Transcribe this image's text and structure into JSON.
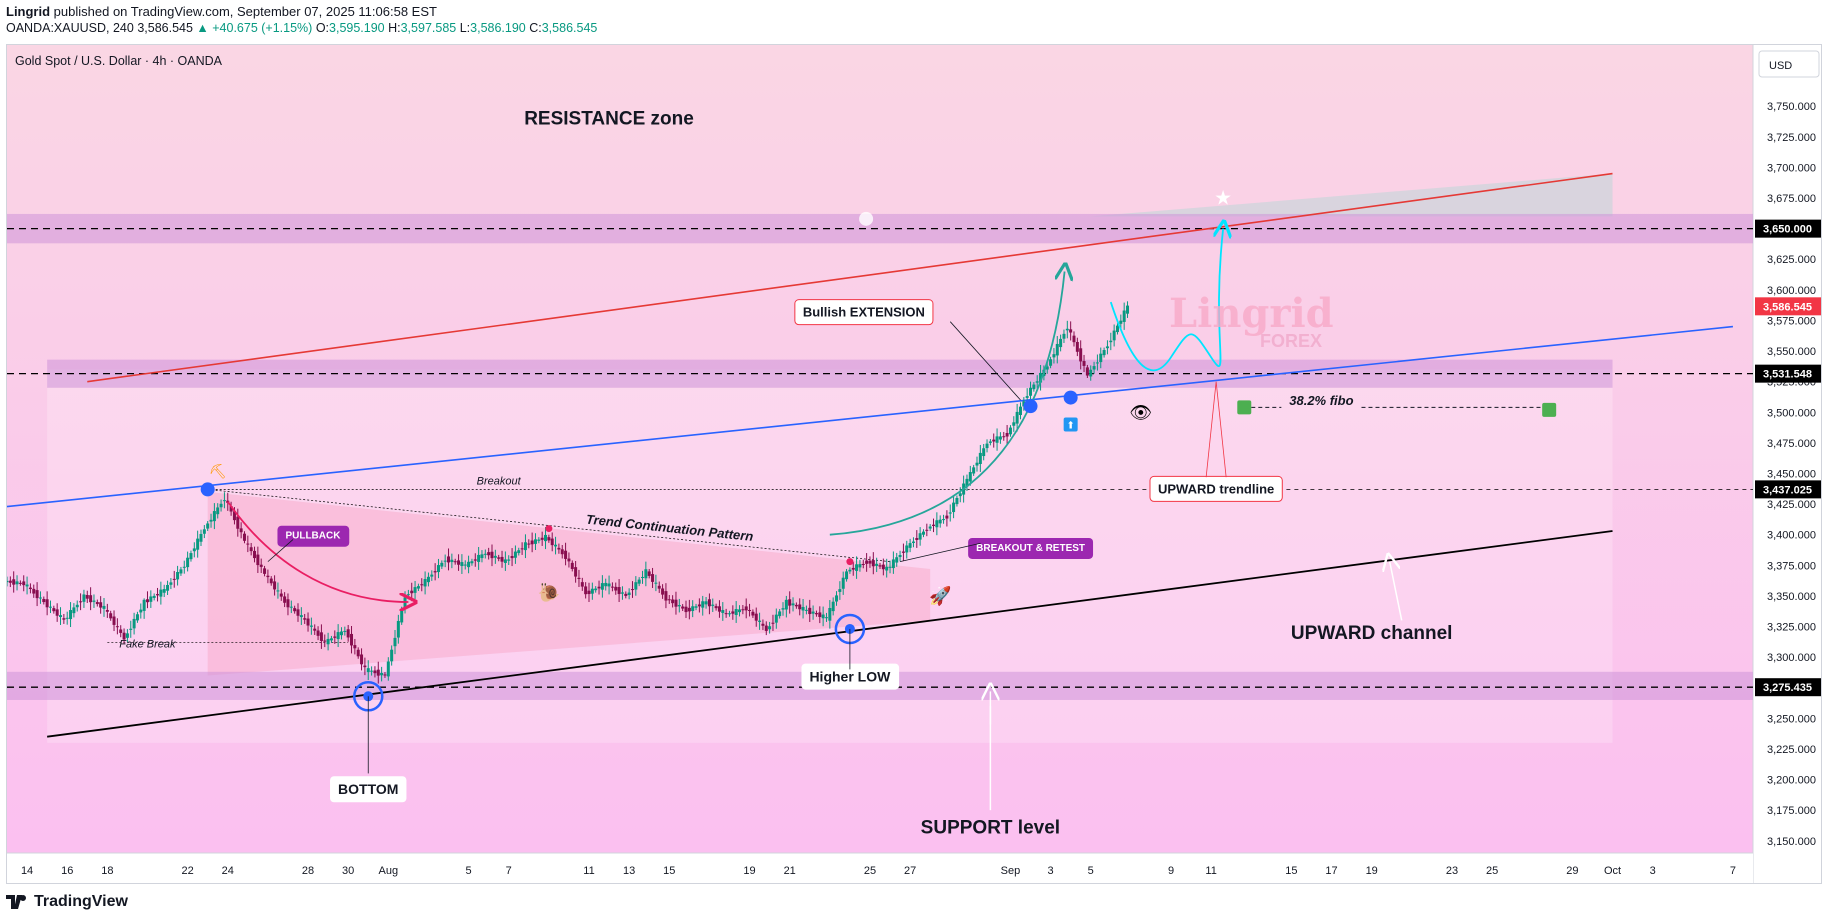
{
  "header": {
    "publisher": "Lingrid",
    "published_text": "published on TradingView.com, September 07, 2025 11:06:58 EST",
    "symbol": "OANDA:XAUUSD, 240",
    "last": "3,586.545",
    "change": "▲ +40.675 (+1.15%)",
    "o_label": "O:",
    "o": "3,595.190",
    "h_label": "H:",
    "h": "3,597.585",
    "l_label": "L:",
    "l": "3,586.190",
    "c_label": "C:",
    "c": "3,586.545"
  },
  "chart_title": "Gold Spot / U.S. Dollar · 4h · OANDA",
  "currency_button": "USD",
  "footer_brand": "TradingView",
  "watermark": {
    "line1": "Lingrid",
    "line2": "FOREX"
  },
  "colors": {
    "bg_top": "#fad6e6",
    "bg_bottom": "#fbc2f2",
    "up_candle": "#089981",
    "down_candle": "#880e4f",
    "resistance_line": "#e53935",
    "trend_line": "#2962ff",
    "channel_line": "#000000",
    "projection": "#00e5ff",
    "arc_green": "#26a69a",
    "arc_pink": "#e91e63",
    "label_purple": "#9c27b0",
    "price_label_bg": "#000000",
    "last_price_bg": "#f23645"
  },
  "annotations": {
    "resistance_zone": "RESISTANCE zone",
    "support_level": "SUPPORT level",
    "upward_channel": "UPWARD channel",
    "upward_trendline": "UPWARD trendline",
    "bullish_extension": "Bullish EXTENSION",
    "breakout_retest": "BREAKOUT & RETEST",
    "pullback": "PULLBACK",
    "breakout": "Breakout",
    "fake_break": "Fake Break",
    "trend_continuation": "Trend Continuation Pattern",
    "fibo": "38.2% fibo",
    "higher_low": "Higher LOW",
    "bottom": "BOTTOM"
  },
  "chart_data": {
    "type": "candlestick",
    "title": "Gold Spot / U.S. Dollar · 4h · OANDA",
    "currency": "USD",
    "ylim": [
      3140,
      3800
    ],
    "y_ticks": [
      3150,
      3175,
      3200,
      3225,
      3250,
      3275,
      3300,
      3325,
      3350,
      3375,
      3400,
      3425,
      3450,
      3475,
      3500,
      3525,
      3550,
      3575,
      3600,
      3625,
      3650,
      3675,
      3700,
      3725,
      3750
    ],
    "y_tick_labels": [
      "3,150.000",
      "3,175.000",
      "3,200.000",
      "3,225.000",
      "3,250.000",
      "3,275.000",
      "3,300.000",
      "3,325.000",
      "3,350.000",
      "3,375.000",
      "3,400.000",
      "3,425.000",
      "3,450.000",
      "3,475.000",
      "3,500.000",
      "3,525.000",
      "3,550.000",
      "3,575.000",
      "3,600.000",
      "3,625.000",
      "3,650.000",
      "3,675.000",
      "3,700.000",
      "3,725.000",
      "3,750.000"
    ],
    "x_tick_labels": [
      "14",
      "16",
      "18",
      "22",
      "24",
      "28",
      "30",
      "Aug",
      "5",
      "7",
      "11",
      "13",
      "15",
      "19",
      "21",
      "25",
      "27",
      "Sep",
      "3",
      "5",
      "9",
      "11",
      "15",
      "17",
      "19",
      "23",
      "25",
      "29",
      "Oct",
      "3",
      "7"
    ],
    "x_tick_dates": [
      "2025-07-14",
      "2025-07-16",
      "2025-07-18",
      "2025-07-22",
      "2025-07-24",
      "2025-07-28",
      "2025-07-30",
      "2025-08-01",
      "2025-08-05",
      "2025-08-07",
      "2025-08-11",
      "2025-08-13",
      "2025-08-15",
      "2025-08-19",
      "2025-08-21",
      "2025-08-25",
      "2025-08-27",
      "2025-09-01",
      "2025-09-03",
      "2025-09-05",
      "2025-09-09",
      "2025-09-11",
      "2025-09-15",
      "2025-09-17",
      "2025-09-19",
      "2025-09-23",
      "2025-09-25",
      "2025-09-29",
      "2025-10-01",
      "2025-10-03",
      "2025-10-07"
    ],
    "price_labels": [
      {
        "value": 3650.0,
        "text": "3,650.000"
      },
      {
        "value": 3586.545,
        "text": "3,586.545"
      },
      {
        "value": 3531.548,
        "text": "3,531.548"
      },
      {
        "value": 3437.025,
        "text": "3,437.025"
      },
      {
        "value": 3275.435,
        "text": "3,275.435"
      }
    ],
    "levels": {
      "resistance_zone": [
        3638,
        3662
      ],
      "mid_zone": [
        3520,
        3543
      ],
      "support_zone": [
        3265,
        3288
      ]
    },
    "lines": {
      "resistance": [
        [
          "2025-07-17",
          3525
        ],
        [
          "2025-10-01",
          3695
        ]
      ],
      "trendline": [
        [
          "2025-07-13",
          3423
        ],
        [
          "2025-10-07",
          3570
        ]
      ],
      "channel": [
        [
          "2025-07-15",
          3235
        ],
        [
          "2025-10-01",
          3403
        ]
      ]
    },
    "series": [
      {
        "kind": "ohlc",
        "points": [
          [
            "2025-07-13",
            3362,
            3375,
            3352,
            3360
          ],
          [
            "2025-07-14",
            3360,
            3370,
            3340,
            3345
          ],
          [
            "2025-07-15",
            3345,
            3360,
            3325,
            3330
          ],
          [
            "2025-07-16",
            3330,
            3355,
            3322,
            3350
          ],
          [
            "2025-07-17",
            3350,
            3362,
            3332,
            3340
          ],
          [
            "2025-07-18",
            3340,
            3352,
            3310,
            3315
          ],
          [
            "2025-07-19",
            3315,
            3348,
            3310,
            3345
          ],
          [
            "2025-07-20",
            3345,
            3365,
            3340,
            3355
          ],
          [
            "2025-07-21",
            3355,
            3380,
            3350,
            3375
          ],
          [
            "2025-07-22",
            3375,
            3410,
            3370,
            3405
          ],
          [
            "2025-07-23",
            3405,
            3442,
            3395,
            3430
          ],
          [
            "2025-07-24",
            3430,
            3438,
            3385,
            3395
          ],
          [
            "2025-07-25",
            3395,
            3400,
            3358,
            3368
          ],
          [
            "2025-07-26",
            3368,
            3378,
            3340,
            3345
          ],
          [
            "2025-07-27",
            3345,
            3352,
            3322,
            3330
          ],
          [
            "2025-07-28",
            3330,
            3338,
            3305,
            3312
          ],
          [
            "2025-07-29",
            3312,
            3330,
            3300,
            3322
          ],
          [
            "2025-07-30",
            3322,
            3330,
            3285,
            3290
          ],
          [
            "2025-07-31",
            3290,
            3298,
            3268,
            3285
          ],
          [
            "2025-08-01",
            3285,
            3355,
            3280,
            3350
          ],
          [
            "2025-08-02",
            3350,
            3370,
            3345,
            3362
          ],
          [
            "2025-08-03",
            3362,
            3385,
            3355,
            3380
          ],
          [
            "2025-08-04",
            3380,
            3392,
            3365,
            3375
          ],
          [
            "2025-08-05",
            3375,
            3390,
            3365,
            3385
          ],
          [
            "2025-08-06",
            3385,
            3392,
            3368,
            3378
          ],
          [
            "2025-08-07",
            3378,
            3405,
            3372,
            3392
          ],
          [
            "2025-08-08",
            3392,
            3408,
            3380,
            3398
          ],
          [
            "2025-08-09",
            3398,
            3402,
            3375,
            3382
          ],
          [
            "2025-08-10",
            3382,
            3390,
            3345,
            3352
          ],
          [
            "2025-08-11",
            3352,
            3370,
            3340,
            3360
          ],
          [
            "2025-08-12",
            3360,
            3368,
            3345,
            3350
          ],
          [
            "2025-08-13",
            3350,
            3378,
            3345,
            3370
          ],
          [
            "2025-08-14",
            3370,
            3378,
            3340,
            3348
          ],
          [
            "2025-08-15",
            3348,
            3360,
            3332,
            3338
          ],
          [
            "2025-08-16",
            3338,
            3350,
            3330,
            3345
          ],
          [
            "2025-08-17",
            3345,
            3352,
            3328,
            3335
          ],
          [
            "2025-08-18",
            3335,
            3348,
            3325,
            3340
          ],
          [
            "2025-08-19",
            3340,
            3345,
            3318,
            3322
          ],
          [
            "2025-08-20",
            3322,
            3350,
            3315,
            3345
          ],
          [
            "2025-08-21",
            3345,
            3355,
            3330,
            3338
          ],
          [
            "2025-08-22",
            3338,
            3350,
            3325,
            3332
          ],
          [
            "2025-08-23",
            3332,
            3380,
            3322,
            3370
          ],
          [
            "2025-08-24",
            3370,
            3385,
            3362,
            3378
          ],
          [
            "2025-08-25",
            3378,
            3390,
            3365,
            3372
          ],
          [
            "2025-08-26",
            3372,
            3395,
            3368,
            3390
          ],
          [
            "2025-08-27",
            3390,
            3410,
            3385,
            3405
          ],
          [
            "2025-08-28",
            3405,
            3420,
            3398,
            3415
          ],
          [
            "2025-08-29",
            3415,
            3450,
            3410,
            3445
          ],
          [
            "2025-08-30",
            3445,
            3480,
            3440,
            3475
          ],
          [
            "2025-08-31",
            3475,
            3490,
            3465,
            3482
          ],
          [
            "2025-09-01",
            3482,
            3520,
            3478,
            3515
          ],
          [
            "2025-09-02",
            3515,
            3545,
            3505,
            3538
          ],
          [
            "2025-09-03",
            3538,
            3580,
            3530,
            3570
          ],
          [
            "2025-09-04",
            3570,
            3575,
            3512,
            3530
          ],
          [
            "2025-09-05",
            3530,
            3565,
            3525,
            3555
          ],
          [
            "2025-09-06",
            3555,
            3600,
            3548,
            3586.545
          ]
        ]
      }
    ]
  }
}
